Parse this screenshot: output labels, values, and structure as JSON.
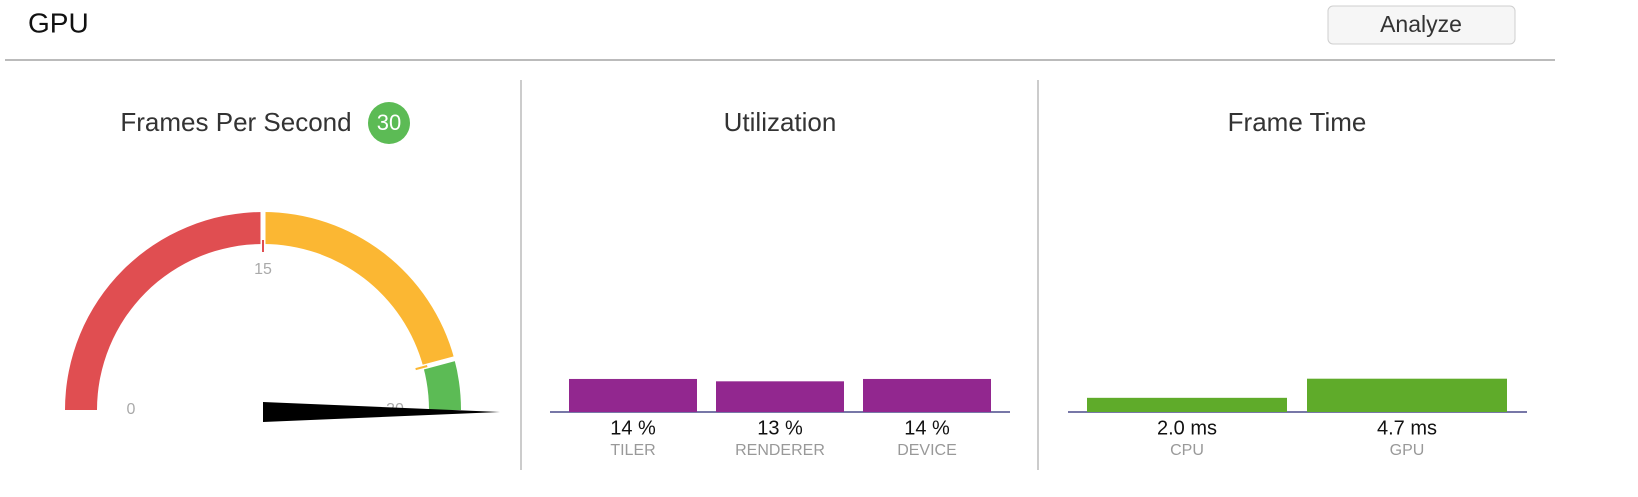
{
  "header": {
    "title": "GPU",
    "button": "Analyze"
  },
  "fps": {
    "title": "Frames Per Second",
    "value": 30,
    "range": [
      0,
      30
    ],
    "ticks": [
      0,
      15,
      30
    ],
    "zones": [
      {
        "from": 0,
        "to": 15,
        "color": "#e04e51"
      },
      {
        "from": 15,
        "to": 27.5,
        "color": "#fbb733"
      },
      {
        "from": 27.5,
        "to": 30,
        "color": "#5cbb55"
      }
    ],
    "badge_color": "#5cbb55"
  },
  "utilization": {
    "title": "Utilization",
    "categories": [
      "TILER",
      "RENDERER",
      "DEVICE"
    ],
    "values": [
      14,
      13,
      14
    ],
    "value_labels": [
      "14 %",
      "13 %",
      "14 %"
    ],
    "color": "#92278f",
    "ylim": [
      0,
      100
    ]
  },
  "frame_time": {
    "title": "Frame Time",
    "categories": [
      "CPU",
      "GPU"
    ],
    "values": [
      2.0,
      4.7
    ],
    "value_labels": [
      "2.0 ms",
      "4.7 ms"
    ],
    "color": "#5fab2a",
    "ylim": [
      0,
      33.3
    ]
  }
}
